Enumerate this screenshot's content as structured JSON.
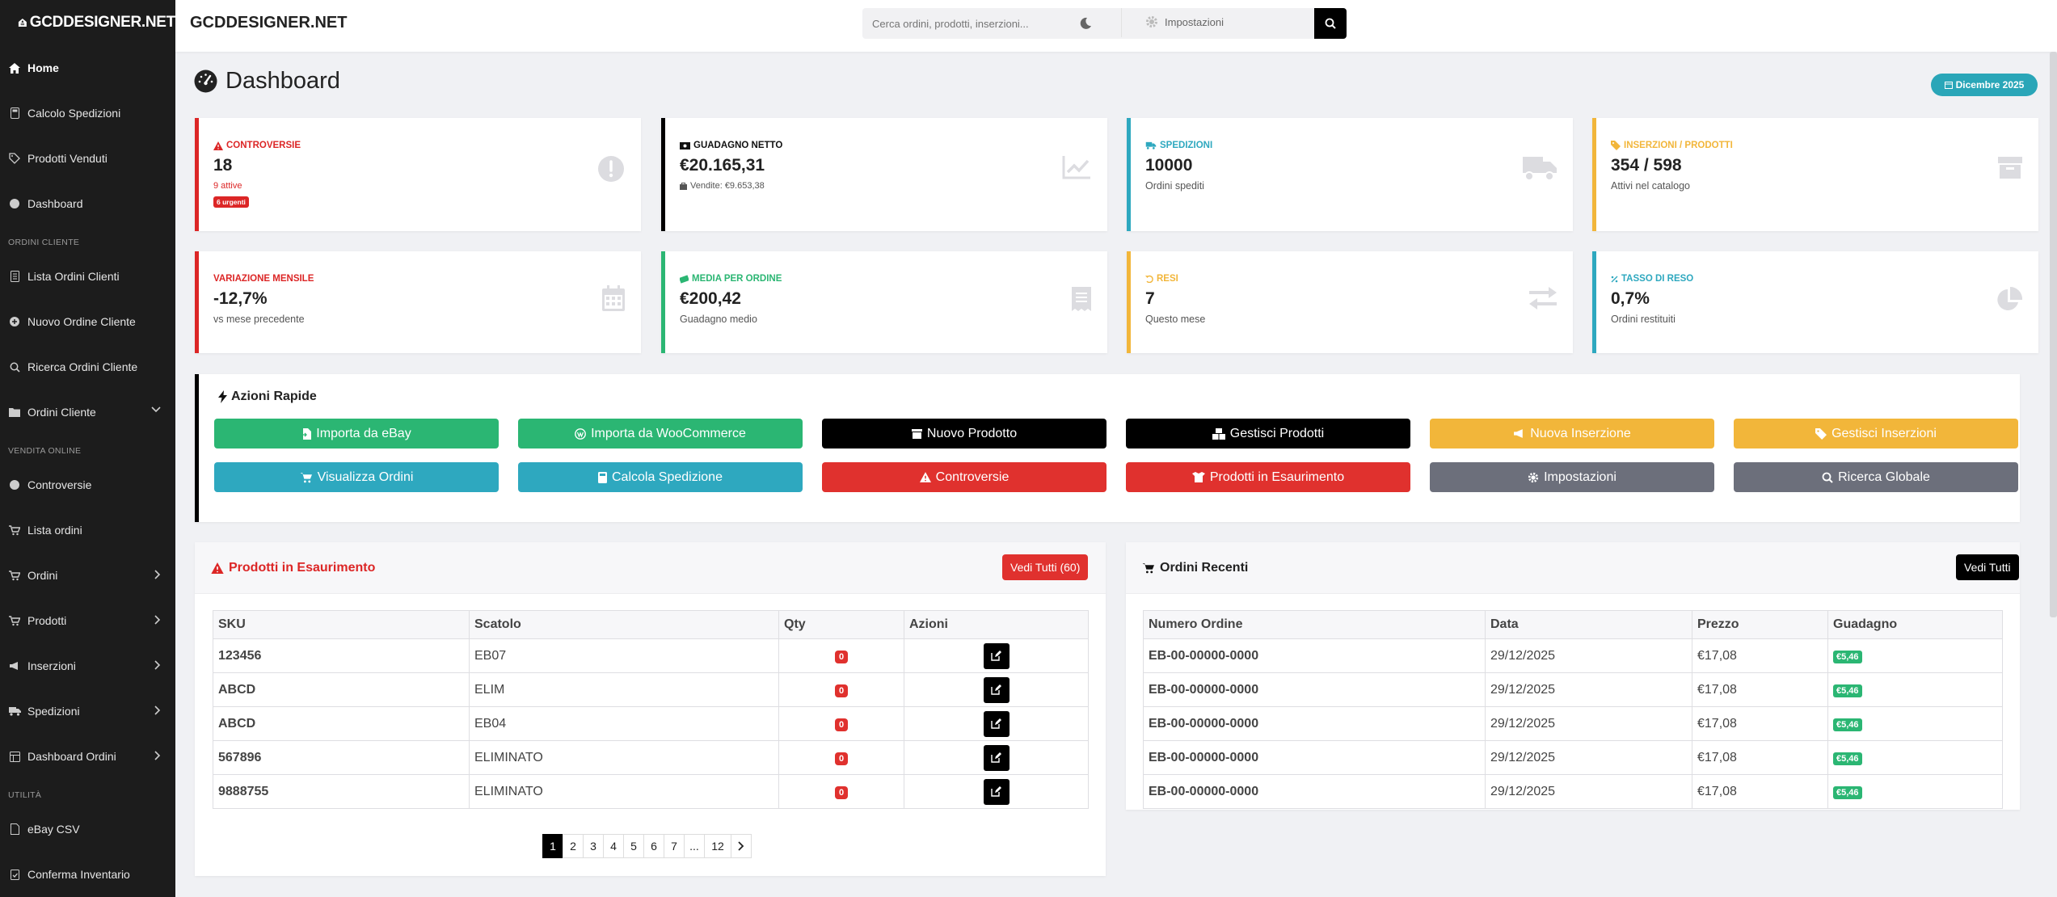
{
  "brand": "GCDDESIGNER.NET",
  "header": {
    "title": "GCDDESIGNER.NET",
    "search_placeholder": "Cerca ordini, prodotti, inserzioni...",
    "settings_label": "Impostazioni"
  },
  "sidebar": {
    "top_items": [
      {
        "label": "Home",
        "icon": "home-icon"
      },
      {
        "label": "Calcolo Spedizioni",
        "icon": "calculator-icon"
      },
      {
        "label": "Prodotti Venduti",
        "icon": "tag-icon"
      },
      {
        "label": "Dashboard",
        "icon": "dashboard-icon"
      }
    ],
    "section_orders": "ORDINI CLIENTE",
    "orders_items": [
      {
        "label": "Lista Ordini Clienti"
      },
      {
        "label": "Nuovo Ordine Cliente"
      },
      {
        "label": "Ricerca Ordini Cliente"
      },
      {
        "label": "Ordini Cliente"
      }
    ],
    "section_online": "VENDITA ONLINE",
    "online_items": [
      {
        "label": "Controversie"
      },
      {
        "label": "Lista ordini"
      },
      {
        "label": "Ordini"
      },
      {
        "label": "Prodotti"
      },
      {
        "label": "Inserzioni"
      },
      {
        "label": "Spedizioni"
      },
      {
        "label": "Dashboard Ordini"
      }
    ],
    "section_utils": "UTILITÀ",
    "utils_items": [
      {
        "label": "eBay CSV"
      },
      {
        "label": "Conferma Inventario"
      }
    ]
  },
  "page": {
    "title": "Dashboard",
    "date_badge": "Dicembre 2025"
  },
  "stats": [
    {
      "label": "CONTROVERSIE",
      "value": "18",
      "sub": "9 attive",
      "badge": "6 urgenti",
      "color": "#dc2626"
    },
    {
      "label": "GUADAGNO NETTO",
      "value": "€20.165,31",
      "sub": "Vendite: €9.653,38",
      "color": "#000000"
    },
    {
      "label": "SPEDIZIONI",
      "value": "10000",
      "sub": "Ordini spediti",
      "color": "#2ea8bf"
    },
    {
      "label": "INSERZIONI / PRODOTTI",
      "value": "354 / 598",
      "sub": "Attivi nel catalogo",
      "color": "#f2b63a"
    },
    {
      "label": "VARIAZIONE MENSILE",
      "value": "-12,7%",
      "sub": "vs mese precedente",
      "color": "#dc2626"
    },
    {
      "label": "MEDIA PER ORDINE",
      "value": "€200,42",
      "sub": "Guadagno medio",
      "color": "#2bb673"
    },
    {
      "label": "RESI",
      "value": "7",
      "sub": "Questo mese",
      "color": "#f2b63a"
    },
    {
      "label": "TASSO DI RESO",
      "value": "0,7%",
      "sub": "Ordini restituiti",
      "color": "#2ea8bf"
    }
  ],
  "quick_actions": {
    "title": "Azioni Rapide",
    "buttons": [
      "Importa da eBay",
      "Importa da WooCommerce",
      "Nuovo Prodotto",
      "Gestisci Prodotti",
      "Nuova Inserzione",
      "Gestisci Inserzioni",
      "Visualizza Ordini",
      "Calcola Spedizione",
      "Controversie",
      "Prodotti in Esaurimento",
      "Impostazioni",
      "Ricerca Globale"
    ]
  },
  "low_stock": {
    "title": "Prodotti in Esaurimento",
    "view_all": "Vedi Tutti (60)",
    "columns": [
      "SKU",
      "Scatolo",
      "Qty",
      "Azioni"
    ],
    "rows": [
      {
        "sku": "123456",
        "box": "EB07",
        "qty": "0"
      },
      {
        "sku": "ABCD",
        "box": "ELIM",
        "qty": "0"
      },
      {
        "sku": "ABCD",
        "box": "EB04",
        "qty": "0"
      },
      {
        "sku": "567896",
        "box": "ELIMINATO",
        "qty": "0"
      },
      {
        "sku": "9888755",
        "box": "ELIMINATO",
        "qty": "0"
      }
    ],
    "pages": [
      "1",
      "2",
      "3",
      "4",
      "5",
      "6",
      "7",
      "...",
      "12"
    ]
  },
  "recent_orders": {
    "title": "Ordini Recenti",
    "view_all": "Vedi Tutti",
    "columns": [
      "Numero Ordine",
      "Data",
      "Prezzo",
      "Guadagno"
    ],
    "rows": [
      {
        "number": "EB-00-00000-0000",
        "date": "29/12/2025",
        "price": "€17,08",
        "gain": "€5,46"
      },
      {
        "number": "EB-00-00000-0000",
        "date": "29/12/2025",
        "price": "€17,08",
        "gain": "€5,46"
      },
      {
        "number": "EB-00-00000-0000",
        "date": "29/12/2025",
        "price": "€17,08",
        "gain": "€5,46"
      },
      {
        "number": "EB-00-00000-0000",
        "date": "29/12/2025",
        "price": "€17,08",
        "gain": "€5,46"
      },
      {
        "number": "EB-00-00000-0000",
        "date": "29/12/2025",
        "price": "€17,08",
        "gain": "€5,46"
      }
    ]
  }
}
